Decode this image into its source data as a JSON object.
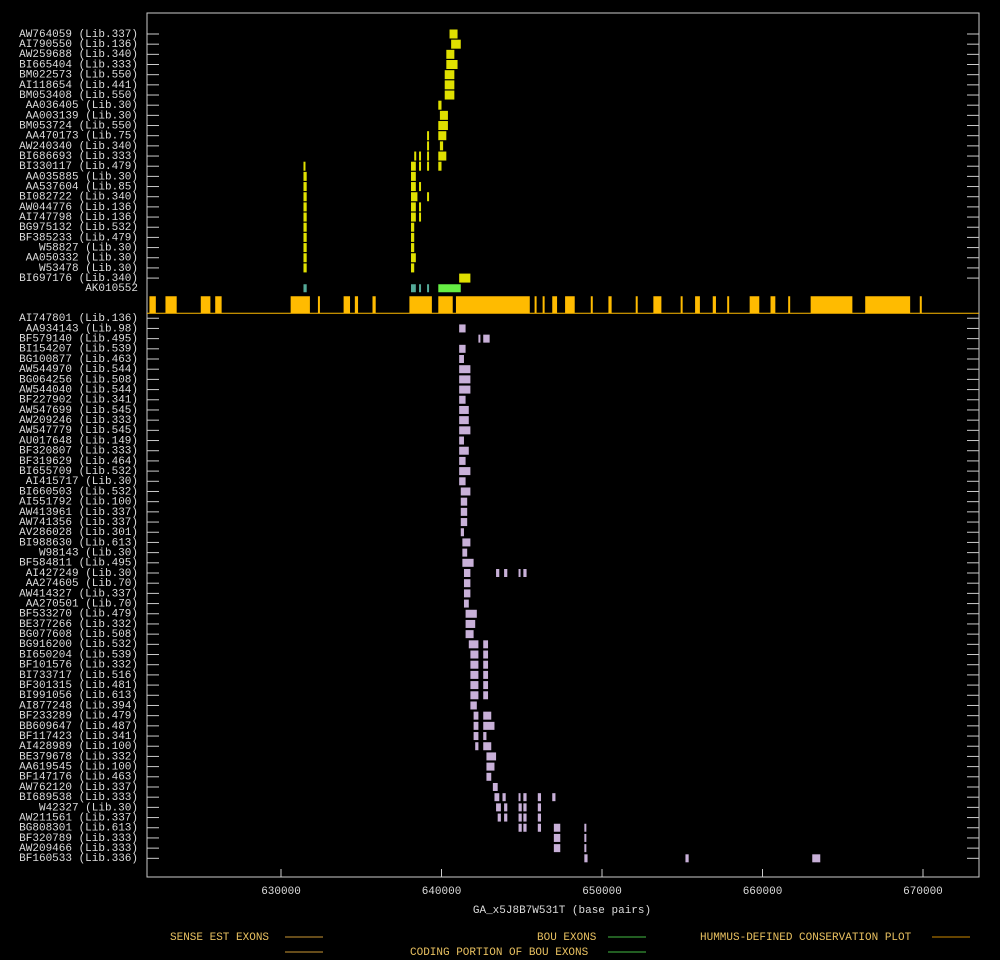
{
  "chart_data": {
    "type": "exon-track",
    "x_label": "GA_x5J8B7W531T (base pairs)",
    "xlim": [
      621650,
      673490
    ],
    "xticks": [
      630000,
      640000,
      650000,
      660000,
      670000
    ],
    "sense_color": "#e0e000",
    "antisense_color": "#c8b0d8",
    "bou_color": "#66ee44",
    "coding_color": "#55aa99",
    "conservation_color": "#ffbb00",
    "sense_rows": [
      {
        "name": "AW764059 (Lib.337)",
        "segments": [
          [
            640500,
            641000
          ]
        ]
      },
      {
        "name": "AI790550 (Lib.136)",
        "segments": [
          [
            640600,
            641200
          ]
        ]
      },
      {
        "name": "AW259688 (Lib.340)",
        "segments": [
          [
            640300,
            640800
          ]
        ]
      },
      {
        "name": "BI665404 (Lib.333)",
        "segments": [
          [
            640300,
            641000
          ]
        ]
      },
      {
        "name": "BM022573 (Lib.550)",
        "segments": [
          [
            640200,
            640800
          ]
        ]
      },
      {
        "name": "AI118654 (Lib.441)",
        "segments": [
          [
            640200,
            640800
          ]
        ]
      },
      {
        "name": "BM053408 (Lib.550)",
        "segments": [
          [
            640200,
            640800
          ]
        ]
      },
      {
        "name": "AA036405 (Lib.30)",
        "segments": [
          [
            639800,
            640000
          ]
        ]
      },
      {
        "name": "AA003139 (Lib.30)",
        "segments": [
          [
            639900,
            640400
          ]
        ]
      },
      {
        "name": "BM053724 (Lib.550)",
        "segments": [
          [
            639800,
            640400
          ]
        ]
      },
      {
        "name": "AA470173 (Lib.75)",
        "segments": [
          [
            639100,
            639200
          ],
          [
            639800,
            640300
          ]
        ]
      },
      {
        "name": "AW240340 (Lib.340)",
        "segments": [
          [
            639100,
            639200
          ],
          [
            639900,
            640100
          ]
        ]
      },
      {
        "name": "BI686693 (Lib.333)",
        "segments": [
          [
            638300,
            638400
          ],
          [
            638600,
            638700
          ],
          [
            639100,
            639200
          ],
          [
            639800,
            640300
          ]
        ]
      },
      {
        "name": "BI330117 (Lib.479)",
        "segments": [
          [
            631400,
            631500
          ],
          [
            638100,
            638400
          ],
          [
            638600,
            638700
          ],
          [
            639100,
            639200
          ],
          [
            639800,
            640000
          ]
        ]
      },
      {
        "name": "AA035885 (Lib.30)",
        "segments": [
          [
            631400,
            631600
          ],
          [
            638100,
            638400
          ]
        ]
      },
      {
        "name": "AA537604 (Lib.85)",
        "segments": [
          [
            631400,
            631600
          ],
          [
            638100,
            638400
          ],
          [
            638600,
            638700
          ]
        ]
      },
      {
        "name": "BI082722 (Lib.340)",
        "segments": [
          [
            631400,
            631600
          ],
          [
            638100,
            638500
          ],
          [
            639100,
            639200
          ]
        ]
      },
      {
        "name": "AW044776 (Lib.136)",
        "segments": [
          [
            631400,
            631600
          ],
          [
            638100,
            638400
          ],
          [
            638600,
            638700
          ]
        ]
      },
      {
        "name": "AI747798 (Lib.136)",
        "segments": [
          [
            631400,
            631600
          ],
          [
            638100,
            638400
          ],
          [
            638600,
            638700
          ]
        ]
      },
      {
        "name": "BG975132 (Lib.532)",
        "segments": [
          [
            631400,
            631600
          ],
          [
            638100,
            638300
          ]
        ]
      },
      {
        "name": "BF385233 (Lib.479)",
        "segments": [
          [
            631400,
            631600
          ],
          [
            638100,
            638300
          ]
        ]
      },
      {
        "name": "W58827 (Lib.30)",
        "segments": [
          [
            631400,
            631600
          ],
          [
            638100,
            638300
          ]
        ]
      },
      {
        "name": "AA050332 (Lib.30)",
        "segments": [
          [
            631400,
            631600
          ],
          [
            638100,
            638400
          ]
        ]
      },
      {
        "name": "W53478 (Lib.30)",
        "segments": [
          [
            631400,
            631600
          ],
          [
            638100,
            638300
          ]
        ]
      },
      {
        "name": "BI697176 (Lib.340)",
        "segments": [
          [
            641100,
            641800
          ]
        ]
      }
    ],
    "bou": {
      "name": "AK010552",
      "coding_segments": [
        [
          631400,
          631600
        ],
        [
          638100,
          638400
        ],
        [
          638600,
          638700
        ],
        [
          639100,
          639200
        ]
      ],
      "segments": [
        [
          639800,
          641200
        ]
      ]
    },
    "conservation_segments": [
      [
        621800,
        622200
      ],
      [
        622800,
        623500
      ],
      [
        625000,
        625600
      ],
      [
        625900,
        626300
      ],
      [
        630600,
        631800
      ],
      [
        632300,
        632400
      ],
      [
        633900,
        634300
      ],
      [
        634600,
        634800
      ],
      [
        635700,
        635900
      ],
      [
        638000,
        639400
      ],
      [
        639800,
        640700
      ],
      [
        640900,
        645500
      ],
      [
        645800,
        645900
      ],
      [
        646300,
        646400
      ],
      [
        646900,
        647200
      ],
      [
        647700,
        648300
      ],
      [
        649300,
        649400
      ],
      [
        650400,
        650600
      ],
      [
        652100,
        652200
      ],
      [
        653200,
        653700
      ],
      [
        654900,
        655000
      ],
      [
        655800,
        656100
      ],
      [
        656900,
        657100
      ],
      [
        657800,
        657900
      ],
      [
        659200,
        659800
      ],
      [
        660500,
        660800
      ],
      [
        661600,
        661700
      ],
      [
        663000,
        665600
      ],
      [
        666400,
        669200
      ],
      [
        669800,
        669900
      ]
    ],
    "antisense_rows": [
      {
        "name": "AI747801 (Lib.136)",
        "segments": []
      },
      {
        "name": "AA934143 (Lib.98)",
        "segments": [
          [
            641100,
            641500
          ]
        ]
      },
      {
        "name": "BF579140 (Lib.495)",
        "segments": [
          [
            642300,
            642400
          ],
          [
            642600,
            643000
          ]
        ]
      },
      {
        "name": "BI154207 (Lib.539)",
        "segments": [
          [
            641100,
            641500
          ]
        ]
      },
      {
        "name": "BG100877 (Lib.463)",
        "segments": [
          [
            641100,
            641400
          ]
        ]
      },
      {
        "name": "AW544970 (Lib.544)",
        "segments": [
          [
            641100,
            641800
          ]
        ]
      },
      {
        "name": "BG064256 (Lib.508)",
        "segments": [
          [
            641100,
            641800
          ]
        ]
      },
      {
        "name": "AW544040 (Lib.544)",
        "segments": [
          [
            641100,
            641800
          ]
        ]
      },
      {
        "name": "BF227902 (Lib.341)",
        "segments": [
          [
            641100,
            641500
          ]
        ]
      },
      {
        "name": "AW547699 (Lib.545)",
        "segments": [
          [
            641100,
            641700
          ]
        ]
      },
      {
        "name": "AW209246 (Lib.333)",
        "segments": [
          [
            641100,
            641700
          ]
        ]
      },
      {
        "name": "AW547779 (Lib.545)",
        "segments": [
          [
            641100,
            641800
          ]
        ]
      },
      {
        "name": "AU017648 (Lib.149)",
        "segments": [
          [
            641100,
            641400
          ]
        ]
      },
      {
        "name": "BF320807 (Lib.333)",
        "segments": [
          [
            641100,
            641700
          ]
        ]
      },
      {
        "name": "BF319629 (Lib.464)",
        "segments": [
          [
            641100,
            641500
          ]
        ]
      },
      {
        "name": "BI655709 (Lib.532)",
        "segments": [
          [
            641100,
            641800
          ]
        ]
      },
      {
        "name": "AI415717 (Lib.30)",
        "segments": [
          [
            641100,
            641500
          ]
        ]
      },
      {
        "name": "BI660503 (Lib.532)",
        "segments": [
          [
            641200,
            641800
          ]
        ]
      },
      {
        "name": "AI551792 (Lib.100)",
        "segments": [
          [
            641200,
            641600
          ]
        ]
      },
      {
        "name": "AW413961 (Lib.337)",
        "segments": [
          [
            641200,
            641600
          ]
        ]
      },
      {
        "name": "AW741356 (Lib.337)",
        "segments": [
          [
            641200,
            641600
          ]
        ]
      },
      {
        "name": "AV286028 (Lib.301)",
        "segments": [
          [
            641200,
            641400
          ]
        ]
      },
      {
        "name": "BI988630 (Lib.613)",
        "segments": [
          [
            641300,
            641800
          ]
        ]
      },
      {
        "name": "W98143 (Lib.30)",
        "segments": [
          [
            641300,
            641600
          ]
        ]
      },
      {
        "name": "BF584811 (Lib.495)",
        "segments": [
          [
            641300,
            642000
          ]
        ]
      },
      {
        "name": "AI427249 (Lib.30)",
        "segments": [
          [
            641400,
            641800
          ],
          [
            643400,
            643600
          ],
          [
            643900,
            644100
          ],
          [
            644800,
            644900
          ],
          [
            645100,
            645300
          ]
        ]
      },
      {
        "name": "AA274605 (Lib.70)",
        "segments": [
          [
            641400,
            641800
          ]
        ]
      },
      {
        "name": "AW414327 (Lib.337)",
        "segments": [
          [
            641400,
            641800
          ]
        ]
      },
      {
        "name": "AA270501 (Lib.70)",
        "segments": [
          [
            641400,
            641700
          ]
        ]
      },
      {
        "name": "BF533270 (Lib.479)",
        "segments": [
          [
            641500,
            642200
          ]
        ]
      },
      {
        "name": "BE377266 (Lib.332)",
        "segments": [
          [
            641500,
            642100
          ]
        ]
      },
      {
        "name": "BG077608 (Lib.508)",
        "segments": [
          [
            641500,
            642000
          ]
        ]
      },
      {
        "name": "BG916200 (Lib.532)",
        "segments": [
          [
            641700,
            642300
          ],
          [
            642600,
            642900
          ]
        ]
      },
      {
        "name": "BI650204 (Lib.539)",
        "segments": [
          [
            641800,
            642300
          ],
          [
            642600,
            642900
          ]
        ]
      },
      {
        "name": "BF101576 (Lib.332)",
        "segments": [
          [
            641800,
            642300
          ],
          [
            642600,
            642900
          ]
        ]
      },
      {
        "name": "BI733717 (Lib.516)",
        "segments": [
          [
            641800,
            642300
          ],
          [
            642600,
            642900
          ]
        ]
      },
      {
        "name": "BF301315 (Lib.481)",
        "segments": [
          [
            641800,
            642300
          ],
          [
            642600,
            642900
          ]
        ]
      },
      {
        "name": "BI991056 (Lib.613)",
        "segments": [
          [
            641800,
            642300
          ],
          [
            642600,
            642900
          ]
        ]
      },
      {
        "name": "AI877248 (Lib.394)",
        "segments": [
          [
            641800,
            642200
          ]
        ]
      },
      {
        "name": "BF233289 (Lib.479)",
        "segments": [
          [
            642000,
            642300
          ],
          [
            642600,
            643100
          ]
        ]
      },
      {
        "name": "BB609647 (Lib.487)",
        "segments": [
          [
            642000,
            642300
          ],
          [
            642600,
            643300
          ]
        ]
      },
      {
        "name": "BF117423 (Lib.341)",
        "segments": [
          [
            642000,
            642300
          ],
          [
            642600,
            642800
          ]
        ]
      },
      {
        "name": "AI428989 (Lib.100)",
        "segments": [
          [
            642100,
            642300
          ],
          [
            642600,
            643100
          ]
        ]
      },
      {
        "name": "BE379678 (Lib.332)",
        "segments": [
          [
            642800,
            643400
          ]
        ]
      },
      {
        "name": "AA619545 (Lib.100)",
        "segments": [
          [
            642800,
            643300
          ]
        ]
      },
      {
        "name": "BF147176 (Lib.463)",
        "segments": [
          [
            642800,
            643100
          ]
        ]
      },
      {
        "name": "AW762120 (Lib.337)",
        "segments": [
          [
            643200,
            643500
          ]
        ]
      },
      {
        "name": "BI689538 (Lib.333)",
        "segments": [
          [
            643300,
            643600
          ],
          [
            643800,
            644000
          ],
          [
            644800,
            644900
          ],
          [
            645100,
            645300
          ],
          [
            646000,
            646200
          ],
          [
            646900,
            647100
          ]
        ]
      },
      {
        "name": "W42327 (Lib.30)",
        "segments": [
          [
            643400,
            643700
          ],
          [
            643900,
            644100
          ],
          [
            644800,
            645000
          ],
          [
            645100,
            645300
          ],
          [
            646000,
            646200
          ]
        ]
      },
      {
        "name": "AW211561 (Lib.337)",
        "segments": [
          [
            643500,
            643700
          ],
          [
            643900,
            644100
          ],
          [
            644800,
            645000
          ],
          [
            645100,
            645300
          ],
          [
            646000,
            646200
          ]
        ]
      },
      {
        "name": "BG808301 (Lib.613)",
        "segments": [
          [
            644800,
            645000
          ],
          [
            645100,
            645300
          ],
          [
            646000,
            646200
          ],
          [
            647000,
            647400
          ],
          [
            648900,
            649000
          ]
        ]
      },
      {
        "name": "BF320789 (Lib.333)",
        "segments": [
          [
            647000,
            647400
          ],
          [
            648900,
            649000
          ]
        ]
      },
      {
        "name": "AW209466 (Lib.333)",
        "segments": [
          [
            647000,
            647400
          ],
          [
            648900,
            649000
          ]
        ]
      },
      {
        "name": "BF160533 (Lib.336)",
        "segments": [
          [
            648900,
            649100
          ],
          [
            655200,
            655400
          ],
          [
            663100,
            663600
          ]
        ]
      }
    ],
    "legend": [
      {
        "label": "SENSE EST EXONS",
        "color": "#cc9933"
      },
      {
        "label": "BOU EXONS",
        "color": "#44bb44"
      },
      {
        "label": "CODING PORTION OF BOU EXONS",
        "color": "#44bb44"
      },
      {
        "label": "HUMMUS-DEFINED CONSERVATION PLOT",
        "color": "#cc8800"
      }
    ]
  }
}
